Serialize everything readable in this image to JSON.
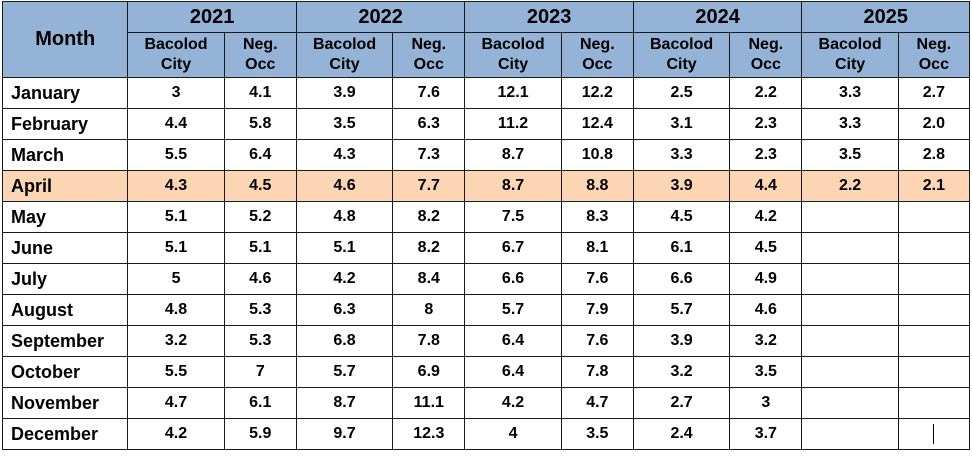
{
  "table": {
    "month_header": "Month",
    "years": [
      "2021",
      "2022",
      "2023",
      "2024",
      "2025"
    ],
    "sub_headers": {
      "city_line1": "Bacolod",
      "city_line2": "City",
      "neg_line1": "Neg.",
      "neg_line2": "Occ"
    },
    "highlighted_month": "April",
    "rows": [
      {
        "month": "January",
        "values": [
          "3",
          "4.1",
          "3.9",
          "7.6",
          "12.1",
          "12.2",
          "2.5",
          "2.2",
          "3.3",
          "2.7"
        ]
      },
      {
        "month": "February",
        "values": [
          "4.4",
          "5.8",
          "3.5",
          "6.3",
          "11.2",
          "12.4",
          "3.1",
          "2.3",
          "3.3",
          "2.0"
        ]
      },
      {
        "month": "March",
        "values": [
          "5.5",
          "6.4",
          "4.3",
          "7.3",
          "8.7",
          "10.8",
          "3.3",
          "2.3",
          "3.5",
          "2.8"
        ]
      },
      {
        "month": "April",
        "values": [
          "4.3",
          "4.5",
          "4.6",
          "7.7",
          "8.7",
          "8.8",
          "3.9",
          "4.4",
          "2.2",
          "2.1"
        ]
      },
      {
        "month": "May",
        "values": [
          "5.1",
          "5.2",
          "4.8",
          "8.2",
          "7.5",
          "8.3",
          "4.5",
          "4.2",
          "",
          ""
        ]
      },
      {
        "month": "June",
        "values": [
          "5.1",
          "5.1",
          "5.1",
          "8.2",
          "6.7",
          "8.1",
          "6.1",
          "4.5",
          "",
          ""
        ]
      },
      {
        "month": "July",
        "values": [
          "5",
          "4.6",
          "4.2",
          "8.4",
          "6.6",
          "7.6",
          "6.6",
          "4.9",
          "",
          ""
        ]
      },
      {
        "month": "August",
        "values": [
          "4.8",
          "5.3",
          "6.3",
          "8",
          "5.7",
          "7.9",
          "5.7",
          "4.6",
          "",
          ""
        ]
      },
      {
        "month": "September",
        "values": [
          "3.2",
          "5.3",
          "6.8",
          "7.8",
          "6.4",
          "7.6",
          "3.9",
          "3.2",
          "",
          ""
        ]
      },
      {
        "month": "October",
        "values": [
          "5.5",
          "7",
          "5.7",
          "6.9",
          "6.4",
          "7.8",
          "3.2",
          "3.5",
          "",
          ""
        ]
      },
      {
        "month": "November",
        "values": [
          "4.7",
          "6.1",
          "8.7",
          "11.1",
          "4.2",
          "4.7",
          "2.7",
          "3",
          "",
          ""
        ]
      },
      {
        "month": "December",
        "values": [
          "4.2",
          "5.9",
          "9.7",
          "12.3",
          "4",
          "3.5",
          "2.4",
          "3.7",
          "",
          ""
        ]
      }
    ]
  },
  "colors": {
    "header_bg": "#95b3d7",
    "highlight_bg": "#fcd5b4",
    "border": "#1a1a1a"
  }
}
